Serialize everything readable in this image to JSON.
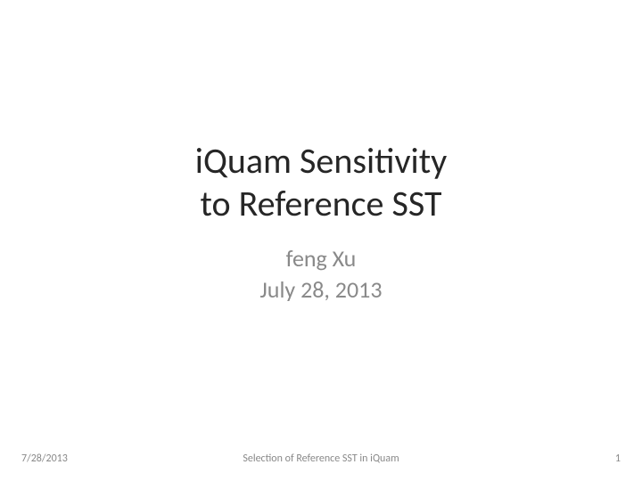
{
  "slide": {
    "title_line1": "iQuam Sensitivity",
    "title_line2": "to Reference SST",
    "author": "feng Xu",
    "date": "July 28, 2013",
    "title_color": "#262626",
    "title_fontsize": 40,
    "subtitle_color": "#898989",
    "subtitle_fontsize": 26,
    "background_color": "#ffffff"
  },
  "footer": {
    "date": "7/28/2013",
    "center_text": "Selection of Reference SST in iQuam",
    "page_number": "1",
    "color": "#898989",
    "fontsize": 12
  }
}
